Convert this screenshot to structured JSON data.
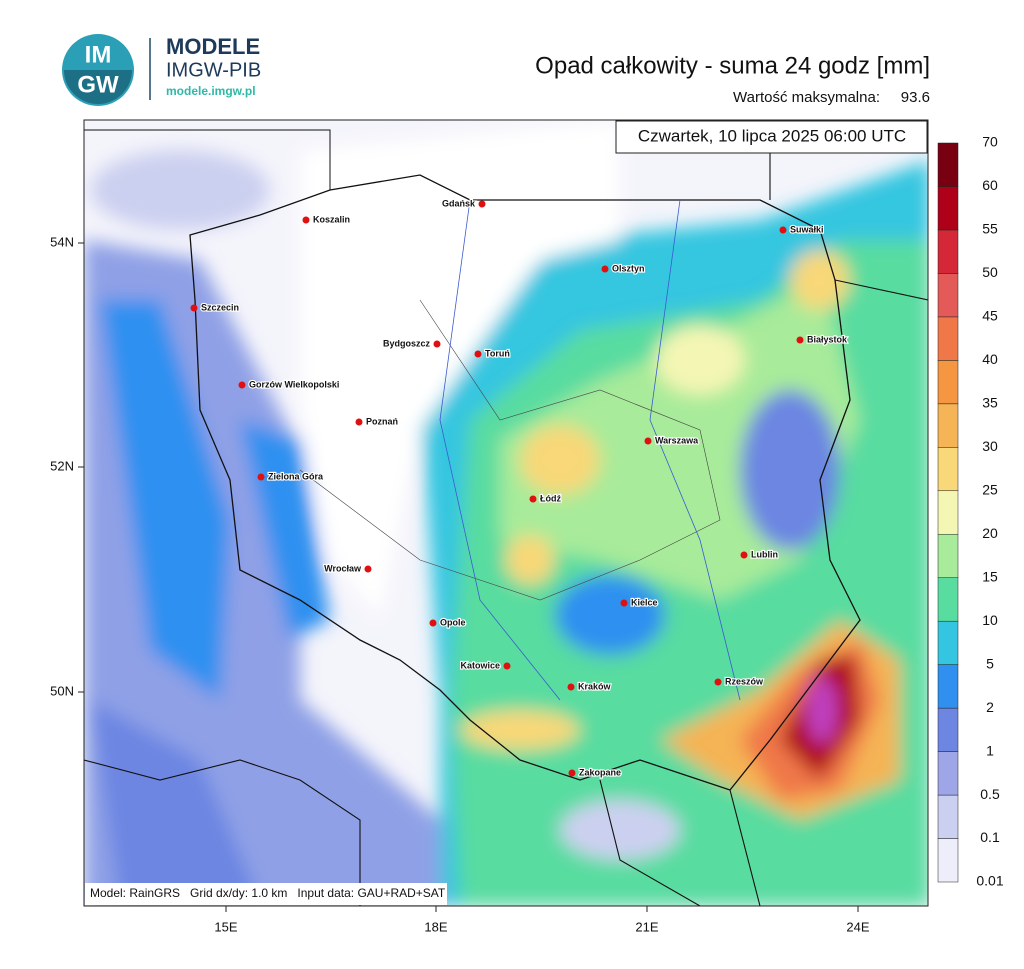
{
  "logo": {
    "mark_top": "IM",
    "mark_bottom": "GW",
    "name": "MODELE",
    "org": "IMGW-PIB",
    "url": "modele.imgw.pl"
  },
  "title": "Opad całkowity - suma 24 godz [mm]",
  "max_label": "Wartość maksymalna:",
  "max_value": 93.6,
  "date": "Czwartek, 10 lipca 2025 06:00 UTC",
  "footer": "Model: RainGRS   Grid dx/dy: 1.0 km   Input data: GAU+RAD+SAT",
  "lat_labels": [
    "54N",
    "52N",
    "50N"
  ],
  "lon_labels": [
    "15E",
    "18E",
    "21E",
    "24E"
  ],
  "cities": [
    "Gdańsk",
    "Koszalin",
    "Suwałki",
    "Olsztyn",
    "Szczecin",
    "Bydgoszcz",
    "Toruń",
    "Białystok",
    "Gorzów Wielkopolski",
    "Poznań",
    "Warszawa",
    "Zielona Góra",
    "Łódź",
    "Lublin",
    "Wrocław",
    "Kielce",
    "Opole",
    "Katowice",
    "Rzeszów",
    "Kraków",
    "Zakopane"
  ],
  "colorbar": {
    "levels": [
      0.01,
      0.1,
      0.5,
      1,
      2,
      5,
      10,
      15,
      20,
      25,
      30,
      35,
      40,
      45,
      50,
      55,
      60,
      70
    ],
    "colors": [
      "#eeeefa",
      "#ccd0f0",
      "#9ea6e8",
      "#6c86e2",
      "#2f90f0",
      "#34c6e0",
      "#58dca0",
      "#a8eb9a",
      "#f4f6b4",
      "#f8d878",
      "#f5b455",
      "#f59640",
      "#f07848",
      "#e45a58",
      "#d42838",
      "#ae0018",
      "#780010"
    ]
  }
}
